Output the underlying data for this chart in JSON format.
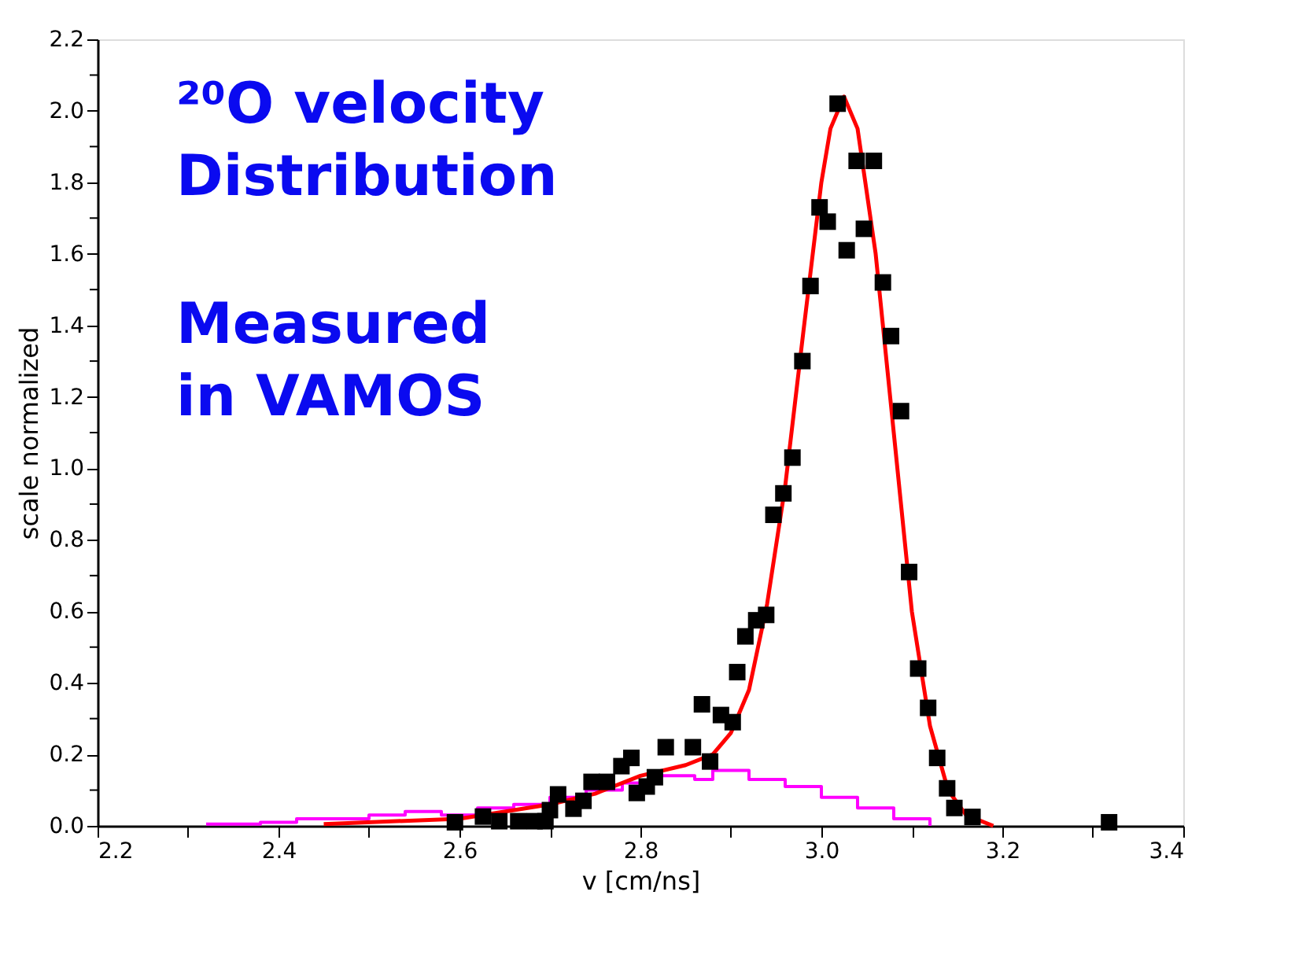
{
  "chart_data": {
    "type": "scatter",
    "xlabel": "v [cm/ns]",
    "ylabel": "scale normalized",
    "annotations": [
      "²⁰O velocity\nDistribution",
      "Measured\nin VAMOS"
    ],
    "xlim": [
      2.2,
      3.4
    ],
    "ylim": [
      0,
      2.2
    ],
    "xticks": [
      {
        "value": 2.2,
        "label": "2.2"
      },
      {
        "value": 2.3,
        "label": null
      },
      {
        "value": 2.4,
        "label": "2.4"
      },
      {
        "value": 2.5,
        "label": null
      },
      {
        "value": 2.6,
        "label": "2.6"
      },
      {
        "value": 2.7,
        "label": null
      },
      {
        "value": 2.8,
        "label": "2.8"
      },
      {
        "value": 2.9,
        "label": null
      },
      {
        "value": 3.0,
        "label": "3.0"
      },
      {
        "value": 3.1,
        "label": null
      },
      {
        "value": 3.2,
        "label": "3.2"
      },
      {
        "value": 3.3,
        "label": null
      },
      {
        "value": 3.4,
        "label": "3.4"
      }
    ],
    "yticks": [
      {
        "value": 0,
        "label": "0.0"
      },
      {
        "value": 0.1,
        "label": null
      },
      {
        "value": 0.2,
        "label": "0.2"
      },
      {
        "value": 0.3,
        "label": null
      },
      {
        "value": 0.4,
        "label": "0.4"
      },
      {
        "value": 0.5,
        "label": null
      },
      {
        "value": 0.6,
        "label": "0.6"
      },
      {
        "value": 0.7,
        "label": null
      },
      {
        "value": 0.8,
        "label": "0.8"
      },
      {
        "value": 0.9,
        "label": null
      },
      {
        "value": 1.0,
        "label": "1.0"
      },
      {
        "value": 1.1,
        "label": null
      },
      {
        "value": 1.2,
        "label": "1.2"
      },
      {
        "value": 1.3,
        "label": null
      },
      {
        "value": 1.4,
        "label": "1.4"
      },
      {
        "value": 1.5,
        "label": null
      },
      {
        "value": 1.6,
        "label": "1.6"
      },
      {
        "value": 1.7,
        "label": null
      },
      {
        "value": 1.8,
        "label": "1.8"
      },
      {
        "value": 1.9,
        "label": null
      },
      {
        "value": 2.0,
        "label": "2.0"
      },
      {
        "value": 2.1,
        "label": null
      },
      {
        "value": 2.2,
        "label": "2.2"
      }
    ],
    "grid": false,
    "series": [
      {
        "type": "step",
        "color": "#ff00ff",
        "x": [
          2.32,
          2.38,
          2.42,
          2.46,
          2.5,
          2.54,
          2.58,
          2.62,
          2.66,
          2.7,
          2.74,
          2.78,
          2.82,
          2.86,
          2.88,
          2.92,
          2.96,
          3.0,
          3.04,
          3.08,
          3.12
        ],
        "values": [
          0.005,
          0.01,
          0.02,
          0.02,
          0.03,
          0.04,
          0.03,
          0.05,
          0.06,
          0.08,
          0.1,
          0.12,
          0.14,
          0.13,
          0.155,
          0.13,
          0.11,
          0.08,
          0.05,
          0.02,
          0.0
        ]
      },
      {
        "type": "line",
        "color": "#ff0000",
        "x": [
          2.45,
          2.55,
          2.6,
          2.7,
          2.75,
          2.8,
          2.85,
          2.88,
          2.9,
          2.92,
          2.94,
          2.96,
          2.98,
          3.0,
          3.01,
          3.025,
          3.04,
          3.06,
          3.08,
          3.1,
          3.12,
          3.14,
          3.16,
          3.19
        ],
        "values": [
          0.005,
          0.015,
          0.02,
          0.06,
          0.09,
          0.14,
          0.17,
          0.2,
          0.26,
          0.38,
          0.62,
          0.95,
          1.38,
          1.8,
          1.95,
          2.04,
          1.95,
          1.6,
          1.1,
          0.6,
          0.28,
          0.1,
          0.03,
          0.0
        ]
      },
      {
        "color": "#000000",
        "marker": "square",
        "x": [
          2.595,
          2.626,
          2.644,
          2.665,
          2.683,
          2.695,
          2.7,
          2.709,
          2.726,
          2.737,
          2.746,
          2.763,
          2.779,
          2.79,
          2.796,
          2.807,
          2.816,
          2.828,
          2.858,
          2.868,
          2.877,
          2.889,
          2.902,
          2.907,
          2.916,
          2.928,
          2.939,
          2.947,
          2.958,
          2.968,
          2.979,
          2.988,
          2.998,
          3.007,
          3.018,
          3.028,
          3.039,
          3.047,
          3.058,
          3.068,
          3.077,
          3.088,
          3.097,
          3.107,
          3.118,
          3.128,
          3.139,
          3.147,
          3.167,
          3.318
        ],
        "values": [
          0.01,
          0.026,
          0.013,
          0.013,
          0.013,
          0.013,
          0.044,
          0.088,
          0.048,
          0.07,
          0.123,
          0.123,
          0.167,
          0.19,
          0.092,
          0.11,
          0.136,
          0.22,
          0.22,
          0.34,
          0.18,
          0.31,
          0.29,
          0.43,
          0.53,
          0.575,
          0.59,
          0.87,
          0.93,
          1.03,
          1.3,
          1.51,
          1.73,
          1.69,
          2.02,
          1.61,
          1.86,
          1.67,
          1.86,
          1.52,
          1.37,
          1.16,
          0.71,
          0.44,
          0.33,
          0.19,
          0.105,
          0.05,
          0.025,
          0.01
        ]
      }
    ]
  }
}
